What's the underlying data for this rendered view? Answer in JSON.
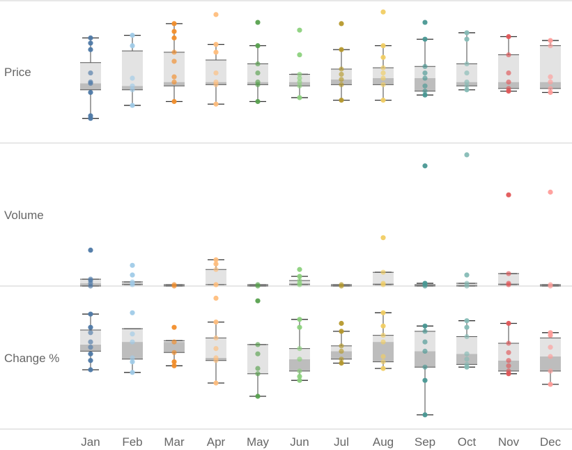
{
  "chart_data": {
    "type": "box-and-whisker with jittered points",
    "rows": [
      "Price",
      "Volume",
      "Change %"
    ],
    "months": [
      "Jan",
      "Feb",
      "Mar",
      "Apr",
      "May",
      "Jun",
      "Jul",
      "Aug",
      "Sep",
      "Oct",
      "Nov",
      "Dec"
    ],
    "colors": {
      "Jan": "#4e79a7",
      "Feb": "#a0cbe8",
      "Mar": "#f28e2b",
      "Apr": "#ffbe7d",
      "May": "#59a14f",
      "Jun": "#8cd17d",
      "Jul": "#b6992d",
      "Aug": "#f1ce63",
      "Sep": "#499894",
      "Oct": "#86bcb6",
      "Nov": "#e15759",
      "Dec": "#ff9d9a"
    },
    "note": "Values are on a relative scale 0 (bottom of row band) to 100 (top of row band); no axis values are printed in the original.",
    "panels": {
      "Price": {
        "Jan": {
          "min": 12,
          "q1": 34,
          "median": 39,
          "q3": 55,
          "max": 74,
          "points": [
            12,
            14,
            32,
            39,
            40,
            47,
            65,
            70,
            74
          ]
        },
        "Feb": {
          "min": 22,
          "q1": 34,
          "median": 37,
          "q3": 64,
          "max": 76,
          "points": [
            22,
            34,
            37,
            43,
            68,
            76
          ]
        },
        "Mar": {
          "min": 25,
          "q1": 37,
          "median": 40,
          "q3": 63,
          "max": 85,
          "points": [
            25,
            40,
            44,
            56,
            63,
            74,
            79,
            85
          ]
        },
        "Apr": {
          "min": 23,
          "q1": 38,
          "median": 40,
          "q3": 57,
          "max": 69,
          "points": [
            23,
            38,
            40,
            47,
            63,
            69,
            92
          ]
        },
        "May": {
          "min": 25,
          "q1": 38,
          "median": 40,
          "q3": 54,
          "max": 68,
          "points": [
            25,
            38,
            40,
            47,
            54,
            68,
            86
          ]
        },
        "Jun": {
          "min": 28,
          "q1": 37,
          "median": 40,
          "q3": 46,
          "max": 46,
          "points": [
            28,
            37,
            40,
            43,
            46,
            61,
            80
          ]
        },
        "Jul": {
          "min": 26,
          "q1": 38,
          "median": 42,
          "q3": 50,
          "max": 65,
          "points": [
            26,
            38,
            42,
            46,
            50,
            65,
            85
          ]
        },
        "Aug": {
          "min": 26,
          "q1": 38,
          "median": 43,
          "q3": 51,
          "max": 68,
          "points": [
            26,
            38,
            43,
            47,
            51,
            59,
            68,
            94
          ]
        },
        "Sep": {
          "min": 30,
          "q1": 33,
          "median": 43,
          "q3": 52,
          "max": 73,
          "points": [
            30,
            33,
            37,
            43,
            47,
            52,
            73,
            86
          ]
        },
        "Oct": {
          "min": 34,
          "q1": 37,
          "median": 40,
          "q3": 54,
          "max": 78,
          "points": [
            34,
            37,
            40,
            47,
            54,
            73,
            78
          ]
        },
        "Nov": {
          "min": 33,
          "q1": 35,
          "median": 40,
          "q3": 61,
          "max": 75,
          "points": [
            33,
            35,
            40,
            47,
            61,
            75
          ]
        },
        "Dec": {
          "min": 32,
          "q1": 35,
          "median": 40,
          "q3": 68,
          "max": 72,
          "points": [
            32,
            35,
            40,
            44,
            68,
            72
          ]
        }
      },
      "Volume": {
        "Jan": {
          "min": 0,
          "q1": 0,
          "median": 2,
          "q3": 5,
          "max": 5,
          "points": [
            0,
            2,
            4,
            5,
            26
          ]
        },
        "Feb": {
          "min": 1,
          "q1": 1,
          "median": 2,
          "q3": 3,
          "max": 3,
          "points": [
            1,
            2,
            3,
            8,
            15
          ]
        },
        "Mar": {
          "min": 0,
          "q1": 0,
          "median": 1,
          "q3": 1,
          "max": 1,
          "points": [
            0,
            1
          ]
        },
        "Apr": {
          "min": 1,
          "q1": 1,
          "median": 1,
          "q3": 12,
          "max": 19,
          "points": [
            1,
            1,
            12,
            16,
            19
          ]
        },
        "May": {
          "min": 0,
          "q1": 0,
          "median": 1,
          "q3": 1,
          "max": 1,
          "points": [
            0,
            1
          ]
        },
        "Jun": {
          "min": 1,
          "q1": 1,
          "median": 2,
          "q3": 4,
          "max": 7,
          "points": [
            1,
            2,
            4,
            7,
            12
          ]
        },
        "Jul": {
          "min": 0,
          "q1": 0,
          "median": 1,
          "q3": 1,
          "max": 1,
          "points": [
            0,
            1
          ]
        },
        "Aug": {
          "min": 1,
          "q1": 1,
          "median": 2,
          "q3": 10,
          "max": 10,
          "points": [
            1,
            2,
            10,
            35
          ]
        },
        "Sep": {
          "min": 0,
          "q1": 0,
          "median": 1,
          "q3": 1,
          "max": 2,
          "points": [
            0,
            1,
            2,
            87
          ]
        },
        "Oct": {
          "min": 0,
          "q1": 0,
          "median": 1,
          "q3": 2,
          "max": 2,
          "points": [
            0,
            2,
            8,
            95
          ]
        },
        "Nov": {
          "min": 1,
          "q1": 1,
          "median": 2,
          "q3": 9,
          "max": 9,
          "points": [
            1,
            2,
            9,
            66
          ]
        },
        "Dec": {
          "min": 0,
          "q1": 0,
          "median": 1,
          "q3": 1,
          "max": 1,
          "points": [
            0,
            1,
            68
          ]
        }
      },
      "Change %": {
        "Jan": {
          "min": 40,
          "q1": 54,
          "median": 59,
          "q3": 70,
          "max": 82,
          "points": [
            40,
            47,
            52,
            57,
            61,
            68,
            72,
            82
          ]
        },
        "Feb": {
          "min": 38,
          "q1": 48,
          "median": 61,
          "q3": 71,
          "max": 71,
          "points": [
            38,
            46,
            49,
            61,
            67,
            83
          ]
        },
        "Mar": {
          "min": 43,
          "q1": 53,
          "median": 61,
          "q3": 62,
          "max": 62,
          "points": [
            43,
            46,
            53,
            61,
            72
          ]
        },
        "Apr": {
          "min": 30,
          "q1": 47,
          "median": 49,
          "q3": 64,
          "max": 76,
          "points": [
            30,
            47,
            49,
            56,
            64,
            76,
            94
          ]
        },
        "May": {
          "min": 20,
          "q1": 37,
          "median": 37,
          "q3": 59,
          "max": 59,
          "points": [
            20,
            37,
            41,
            52,
            59,
            92
          ]
        },
        "Jun": {
          "min": 32,
          "q1": 39,
          "median": 48,
          "q3": 56,
          "max": 78,
          "points": [
            32,
            35,
            39,
            48,
            56,
            72,
            78
          ]
        },
        "Jul": {
          "min": 45,
          "q1": 48,
          "median": 54,
          "q3": 58,
          "max": 69,
          "points": [
            45,
            48,
            54,
            58,
            69,
            75
          ]
        },
        "Aug": {
          "min": 41,
          "q1": 46,
          "median": 61,
          "q3": 66,
          "max": 83,
          "points": [
            41,
            46,
            50,
            61,
            66,
            73,
            83
          ]
        },
        "Sep": {
          "min": 6,
          "q1": 42,
          "median": 54,
          "q3": 69,
          "max": 73,
          "points": [
            6,
            32,
            42,
            54,
            61,
            69,
            73
          ]
        },
        "Oct": {
          "min": 42,
          "q1": 44,
          "median": 52,
          "q3": 65,
          "max": 77,
          "points": [
            42,
            44,
            48,
            52,
            65,
            72,
            77
          ]
        },
        "Nov": {
          "min": 37,
          "q1": 39,
          "median": 47,
          "q3": 60,
          "max": 75,
          "points": [
            37,
            39,
            43,
            47,
            53,
            60,
            75
          ]
        },
        "Dec": {
          "min": 29,
          "q1": 39,
          "median": 50,
          "q3": 64,
          "max": 68,
          "points": [
            29,
            39,
            50,
            57,
            66,
            68
          ]
        }
      }
    }
  }
}
